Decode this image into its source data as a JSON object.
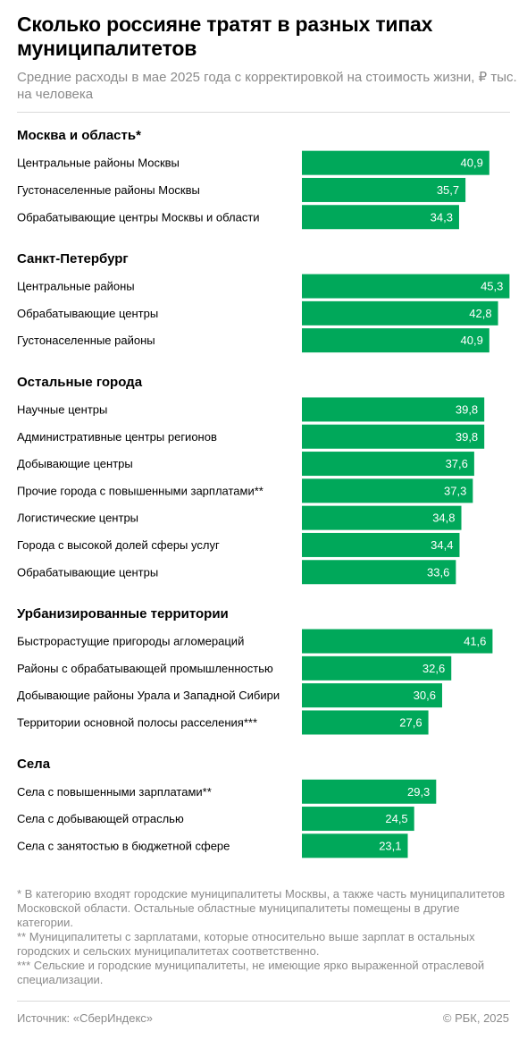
{
  "header": {
    "title": "Сколько россияне тратят в разных типах муниципалитетов",
    "subtitle": "Средние расходы в мае 2025 года с корректировкой на стоимость жизни, ₽ тыс. на человека"
  },
  "chart_data": {
    "type": "bar",
    "orientation": "horizontal",
    "title": "Сколько россияне тратят в разных типах муниципалитетов",
    "subtitle": "Средние расходы в мае 2025 года с корректировкой на стоимость жизни, ₽ тыс. на человека",
    "bar_color": "#00a85a",
    "value_label_color": "#ffffff",
    "groups": [
      {
        "name": "Москва и область*",
        "items": [
          {
            "label": "Центральные районы Москвы",
            "value": 40.9,
            "value_text": "40,9"
          },
          {
            "label": "Густонаселенные районы Москвы",
            "value": 35.7,
            "value_text": "35,7"
          },
          {
            "label": "Обрабатывающие центры Москвы и области",
            "value": 34.3,
            "value_text": "34,3"
          }
        ]
      },
      {
        "name": "Санкт-Петербург",
        "items": [
          {
            "label": "Центральные районы",
            "value": 45.3,
            "value_text": "45,3"
          },
          {
            "label": "Обрабатывающие центры",
            "value": 42.8,
            "value_text": "42,8"
          },
          {
            "label": "Густонаселенные районы",
            "value": 40.9,
            "value_text": "40,9"
          }
        ]
      },
      {
        "name": "Остальные города",
        "items": [
          {
            "label": "Научные центры",
            "value": 39.8,
            "value_text": "39,8"
          },
          {
            "label": "Административные центры регионов",
            "value": 39.8,
            "value_text": "39,8"
          },
          {
            "label": "Добывающие центры",
            "value": 37.6,
            "value_text": "37,6"
          },
          {
            "label": "Прочие города с повышенными зарплатами**",
            "value": 37.3,
            "value_text": "37,3"
          },
          {
            "label": "Логистические центры",
            "value": 34.8,
            "value_text": "34,8"
          },
          {
            "label": "Города с высокой долей сферы услуг",
            "value": 34.4,
            "value_text": "34,4"
          },
          {
            "label": "Обрабатывающие центры",
            "value": 33.6,
            "value_text": "33,6"
          }
        ]
      },
      {
        "name": "Урбанизированные территории",
        "items": [
          {
            "label": "Быстрорастущие пригороды агломераций",
            "value": 41.6,
            "value_text": "41,6"
          },
          {
            "label": "Районы с обрабатывающей промышленностью",
            "value": 32.6,
            "value_text": "32,6"
          },
          {
            "label": "Добывающие районы Урала и Западной Сибири",
            "value": 30.6,
            "value_text": "30,6"
          },
          {
            "label": "Территории основной полосы расселения***",
            "value": 27.6,
            "value_text": "27,6"
          }
        ]
      },
      {
        "name": "Села",
        "items": [
          {
            "label": "Села с повышенными зарплатами**",
            "value": 29.3,
            "value_text": "29,3"
          },
          {
            "label": "Села с добывающей отраслью",
            "value": 24.5,
            "value_text": "24,5"
          },
          {
            "label": "Села с занятостью в бюджетной сфере",
            "value": 23.1,
            "value_text": "23,1"
          }
        ]
      }
    ]
  },
  "footnotes": {
    "note1": "* В категорию входят городские муниципалитеты Москвы, а также часть муниципалитетов Московской области. Остальные областные муниципалитеты помещены в другие категории.",
    "note2": "** Муниципалитеты с зарплатами, которые относительно выше зарплат в остальных городских и сельских муниципалитетах соответственно.",
    "note3": "*** Сельские и городские муниципалитеты, не имеющие ярко выраженной отраслевой специализации."
  },
  "footer": {
    "source": "Источник: «СберИндекс»",
    "copyright": "© РБК, 2025"
  }
}
